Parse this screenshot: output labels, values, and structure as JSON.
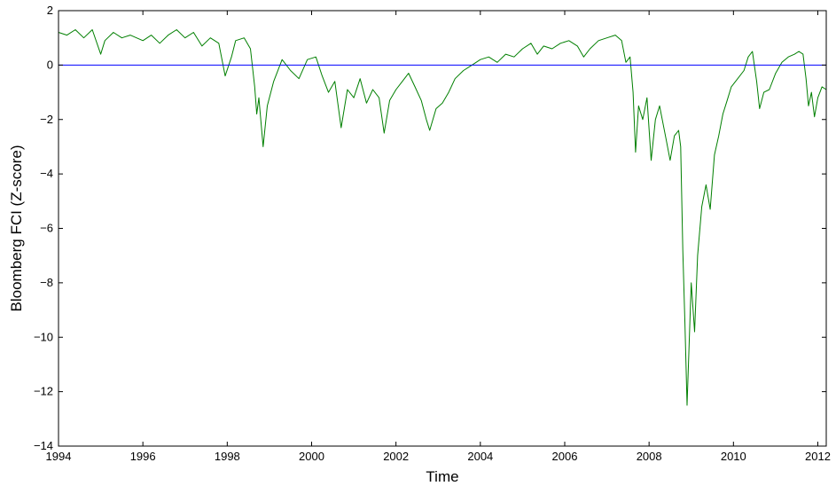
{
  "chart_data": {
    "type": "line",
    "title": "",
    "xlabel": "Time",
    "ylabel": "Bloomberg FCI (Z-score)",
    "xlim": [
      1994,
      2012.2
    ],
    "ylim": [
      -14,
      2
    ],
    "x_ticks": [
      1994,
      1996,
      1998,
      2000,
      2002,
      2004,
      2006,
      2008,
      2010,
      2012
    ],
    "x_tick_labels": [
      "1994",
      "1996",
      "1998",
      "2000",
      "2002",
      "2004",
      "2006",
      "2008",
      "2010",
      "2012"
    ],
    "y_ticks": [
      2,
      0,
      -2,
      -4,
      -6,
      -8,
      -10,
      -12,
      -14
    ],
    "y_tick_labels": [
      "2",
      "0",
      "−2",
      "−4",
      "−6",
      "−8",
      "−10",
      "−12",
      "−14"
    ],
    "grid": false,
    "legend": "none",
    "series": [
      {
        "color": "#007f00",
        "points": [
          [
            1994.0,
            1.2
          ],
          [
            1994.2,
            1.1
          ],
          [
            1994.4,
            1.3
          ],
          [
            1994.6,
            1.0
          ],
          [
            1994.8,
            1.3
          ],
          [
            1995.0,
            0.4
          ],
          [
            1995.1,
            0.9
          ],
          [
            1995.3,
            1.2
          ],
          [
            1995.5,
            1.0
          ],
          [
            1995.7,
            1.1
          ],
          [
            1996.0,
            0.9
          ],
          [
            1996.2,
            1.1
          ],
          [
            1996.4,
            0.8
          ],
          [
            1996.6,
            1.1
          ],
          [
            1996.8,
            1.3
          ],
          [
            1997.0,
            1.0
          ],
          [
            1997.2,
            1.2
          ],
          [
            1997.4,
            0.7
          ],
          [
            1997.6,
            1.0
          ],
          [
            1997.8,
            0.8
          ],
          [
            1997.95,
            -0.4
          ],
          [
            1998.1,
            0.3
          ],
          [
            1998.2,
            0.9
          ],
          [
            1998.4,
            1.0
          ],
          [
            1998.55,
            0.6
          ],
          [
            1998.65,
            -0.8
          ],
          [
            1998.7,
            -1.8
          ],
          [
            1998.75,
            -1.2
          ],
          [
            1998.85,
            -3.0
          ],
          [
            1998.95,
            -1.5
          ],
          [
            1999.1,
            -0.6
          ],
          [
            1999.3,
            0.2
          ],
          [
            1999.5,
            -0.2
          ],
          [
            1999.7,
            -0.5
          ],
          [
            1999.9,
            0.2
          ],
          [
            2000.1,
            0.3
          ],
          [
            2000.25,
            -0.4
          ],
          [
            2000.4,
            -1.0
          ],
          [
            2000.55,
            -0.6
          ],
          [
            2000.7,
            -2.3
          ],
          [
            2000.85,
            -0.9
          ],
          [
            2001.0,
            -1.2
          ],
          [
            2001.15,
            -0.5
          ],
          [
            2001.3,
            -1.4
          ],
          [
            2001.45,
            -0.9
          ],
          [
            2001.6,
            -1.2
          ],
          [
            2001.72,
            -2.5
          ],
          [
            2001.85,
            -1.3
          ],
          [
            2002.0,
            -0.9
          ],
          [
            2002.15,
            -0.6
          ],
          [
            2002.3,
            -0.3
          ],
          [
            2002.45,
            -0.8
          ],
          [
            2002.6,
            -1.3
          ],
          [
            2002.72,
            -2.0
          ],
          [
            2002.8,
            -2.4
          ],
          [
            2002.95,
            -1.6
          ],
          [
            2003.1,
            -1.4
          ],
          [
            2003.25,
            -1.0
          ],
          [
            2003.4,
            -0.5
          ],
          [
            2003.6,
            -0.2
          ],
          [
            2003.8,
            0.0
          ],
          [
            2004.0,
            0.2
          ],
          [
            2004.2,
            0.3
          ],
          [
            2004.4,
            0.1
          ],
          [
            2004.6,
            0.4
          ],
          [
            2004.8,
            0.3
          ],
          [
            2005.0,
            0.6
          ],
          [
            2005.2,
            0.8
          ],
          [
            2005.35,
            0.4
          ],
          [
            2005.5,
            0.7
          ],
          [
            2005.7,
            0.6
          ],
          [
            2005.9,
            0.8
          ],
          [
            2006.1,
            0.9
          ],
          [
            2006.3,
            0.7
          ],
          [
            2006.45,
            0.3
          ],
          [
            2006.6,
            0.6
          ],
          [
            2006.8,
            0.9
          ],
          [
            2007.0,
            1.0
          ],
          [
            2007.2,
            1.1
          ],
          [
            2007.35,
            0.9
          ],
          [
            2007.45,
            0.1
          ],
          [
            2007.55,
            0.3
          ],
          [
            2007.62,
            -1.0
          ],
          [
            2007.68,
            -3.2
          ],
          [
            2007.75,
            -1.5
          ],
          [
            2007.85,
            -2.0
          ],
          [
            2007.95,
            -1.2
          ],
          [
            2008.05,
            -3.5
          ],
          [
            2008.15,
            -2.0
          ],
          [
            2008.25,
            -1.5
          ],
          [
            2008.4,
            -2.7
          ],
          [
            2008.5,
            -3.5
          ],
          [
            2008.6,
            -2.6
          ],
          [
            2008.7,
            -2.4
          ],
          [
            2008.75,
            -3.0
          ],
          [
            2008.8,
            -6.8
          ],
          [
            2008.85,
            -9.5
          ],
          [
            2008.9,
            -12.5
          ],
          [
            2008.95,
            -10.2
          ],
          [
            2009.0,
            -8.0
          ],
          [
            2009.08,
            -9.8
          ],
          [
            2009.15,
            -7.0
          ],
          [
            2009.25,
            -5.2
          ],
          [
            2009.35,
            -4.4
          ],
          [
            2009.45,
            -5.3
          ],
          [
            2009.55,
            -3.3
          ],
          [
            2009.65,
            -2.6
          ],
          [
            2009.75,
            -1.8
          ],
          [
            2009.85,
            -1.3
          ],
          [
            2009.95,
            -0.8
          ],
          [
            2010.1,
            -0.5
          ],
          [
            2010.25,
            -0.2
          ],
          [
            2010.35,
            0.3
          ],
          [
            2010.45,
            0.5
          ],
          [
            2010.55,
            -0.6
          ],
          [
            2010.62,
            -1.6
          ],
          [
            2010.72,
            -1.0
          ],
          [
            2010.85,
            -0.9
          ],
          [
            2011.0,
            -0.3
          ],
          [
            2011.15,
            0.1
          ],
          [
            2011.3,
            0.3
          ],
          [
            2011.45,
            0.4
          ],
          [
            2011.55,
            0.5
          ],
          [
            2011.65,
            0.4
          ],
          [
            2011.72,
            -0.5
          ],
          [
            2011.78,
            -1.5
          ],
          [
            2011.85,
            -1.0
          ],
          [
            2011.92,
            -1.9
          ],
          [
            2012.0,
            -1.2
          ],
          [
            2012.1,
            -0.8
          ],
          [
            2012.2,
            -0.9
          ]
        ]
      },
      {
        "color": "#0000ff",
        "points": [
          [
            1994,
            0
          ],
          [
            2012.2,
            0
          ]
        ]
      }
    ]
  }
}
